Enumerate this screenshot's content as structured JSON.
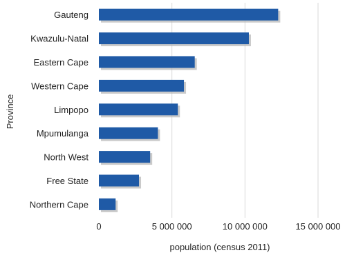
{
  "chart_data": {
    "type": "bar",
    "orientation": "horizontal",
    "categories": [
      "Gauteng",
      "Kwazulu-Natal",
      "Eastern Cape",
      "Western Cape",
      "Limpopo",
      "Mpumulanga",
      "North West",
      "Free State",
      "Northern Cape"
    ],
    "values": [
      12272263,
      10267300,
      6562053,
      5822734,
      5404868,
      4039939,
      3509953,
      2745590,
      1145861
    ],
    "xlabel": "population (census 2011)",
    "ylabel": "Province",
    "xlim": [
      0,
      15000000
    ],
    "xticks": [
      0,
      5000000,
      10000000,
      15000000
    ],
    "xtick_labels": [
      "0",
      "5 000 000",
      "10 000 000",
      "15 000 000"
    ],
    "grid": true,
    "legend": "none",
    "colors": {
      "bar": "#1f5aa6",
      "shadow": "#b4b4b4",
      "grid": "#d9d9d9"
    }
  }
}
